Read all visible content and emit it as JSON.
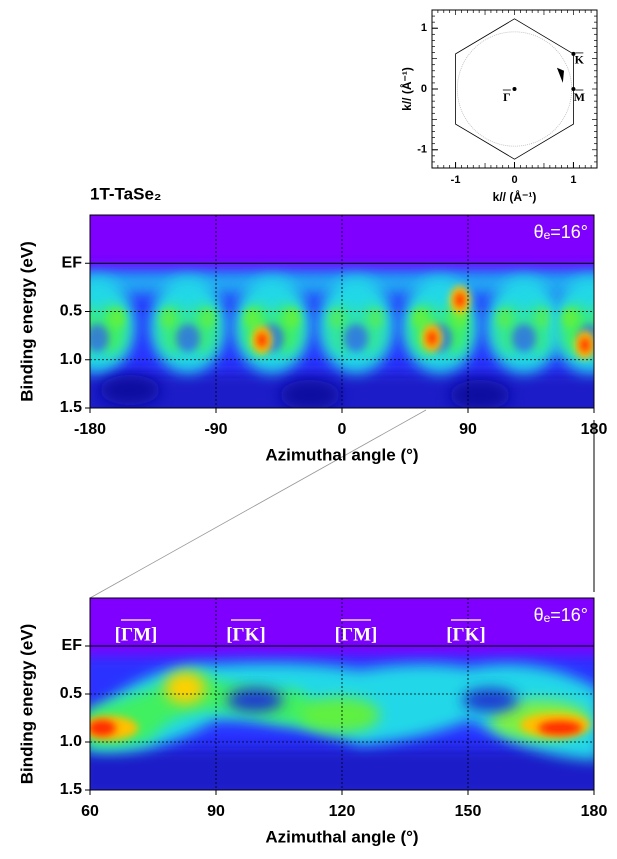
{
  "chart_data": [
    {
      "type": "diagram",
      "xlabel": "k// (Å⁻¹)",
      "ylabel": "k// (Å⁻¹)",
      "xlim": [
        -1.4,
        1.4
      ],
      "ylim": [
        -1.3,
        1.3
      ],
      "xticks": [
        -1,
        0,
        1
      ],
      "yticks": [
        -1,
        0,
        1
      ],
      "point_labels": [
        "K",
        "M",
        "Γ"
      ]
    },
    {
      "type": "heatmap",
      "title": "1T-TaSe₂",
      "annotation": "θₑ=16°",
      "xlabel": "Azimuthal angle (°)",
      "ylabel": "Binding energy (eV)",
      "xlim": [
        -180,
        180
      ],
      "xticks": [
        -180,
        -90,
        0,
        90,
        180
      ],
      "ylim": [
        1.5,
        -0.5
      ],
      "yticks": [
        {
          "value": 0,
          "label": "EF"
        },
        0.5,
        {
          "value": 1,
          "label": "1.0"
        },
        1.5
      ]
    },
    {
      "type": "heatmap",
      "annotation": "θₑ=16°",
      "direction_labels": [
        "[ΓM]",
        "[ΓK]",
        "[ΓM]",
        "[ΓK]"
      ],
      "xlabel": "Azimuthal angle (°)",
      "ylabel": "Binding energy (eV)",
      "xlim": [
        60,
        180
      ],
      "xticks": [
        60,
        90,
        120,
        150,
        180
      ],
      "ylim": [
        1.5,
        -0.5
      ],
      "yticks": [
        {
          "value": 0,
          "label": "EF"
        },
        0.5,
        {
          "value": 1,
          "label": "1.0"
        },
        1.5
      ]
    }
  ]
}
